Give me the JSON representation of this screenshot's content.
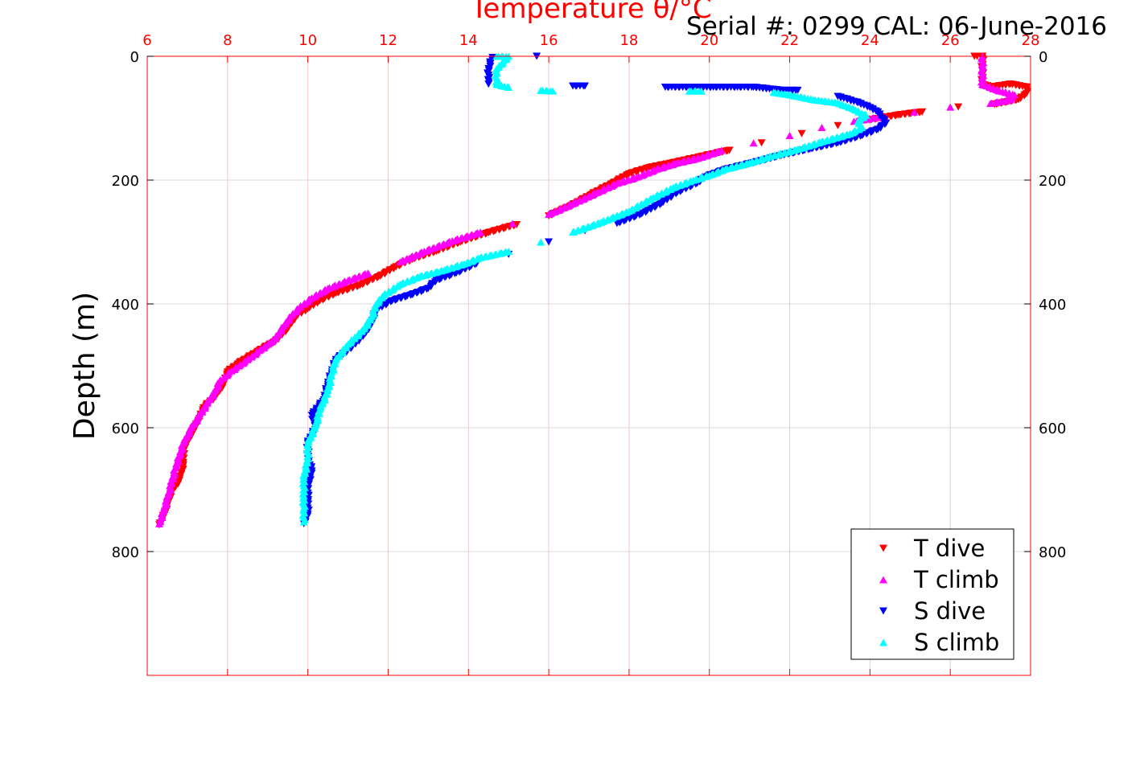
{
  "chart_data": {
    "type": "scatter",
    "title": "Temperature θ/°C",
    "subtitle": "Serial #: 0299 CAL: 06-June-2016",
    "xlabel": "Temperature θ/°C",
    "ylabel": "Depth (m)",
    "xlim": [
      6,
      28
    ],
    "ylim": [
      1000,
      0
    ],
    "y_reversed": true,
    "x_axis_position": "top",
    "x_ticks": [
      "6",
      "8",
      "10",
      "12",
      "14",
      "16",
      "18",
      "20",
      "22",
      "24",
      "26",
      "28"
    ],
    "y_ticks": [
      "0",
      "200",
      "400",
      "600",
      "800"
    ],
    "grid": true,
    "legend_position": "bottom-right",
    "axis_color": "#ff0000",
    "series": [
      {
        "name": "T dive",
        "marker": "triangle-down",
        "color": "#ff0000",
        "points": [
          [
            26.6,
            0
          ],
          [
            26.8,
            0
          ],
          [
            26.8,
            20
          ],
          [
            26.8,
            45
          ],
          [
            27.0,
            50
          ],
          [
            27.5,
            45
          ],
          [
            27.9,
            50
          ],
          [
            27.9,
            60
          ],
          [
            27.7,
            70
          ],
          [
            27.1,
            78
          ],
          [
            26.2,
            82
          ],
          [
            25.3,
            90
          ],
          [
            24.7,
            95
          ],
          [
            24.0,
            103
          ],
          [
            23.2,
            112
          ],
          [
            22.3,
            125
          ],
          [
            21.3,
            140
          ],
          [
            20.5,
            152
          ],
          [
            19.8,
            162
          ],
          [
            19.1,
            172
          ],
          [
            18.5,
            180
          ],
          [
            18.0,
            190
          ],
          [
            17.6,
            205
          ],
          [
            17.1,
            222
          ],
          [
            16.6,
            240
          ],
          [
            16.0,
            258
          ],
          [
            15.2,
            272
          ],
          [
            14.5,
            285
          ],
          [
            13.8,
            300
          ],
          [
            13.2,
            315
          ],
          [
            12.6,
            328
          ],
          [
            12.2,
            340
          ],
          [
            11.8,
            355
          ],
          [
            11.3,
            370
          ],
          [
            10.7,
            383
          ],
          [
            10.3,
            395
          ],
          [
            10.0,
            408
          ],
          [
            9.7,
            420
          ],
          [
            9.5,
            440
          ],
          [
            9.2,
            460
          ],
          [
            8.8,
            475
          ],
          [
            8.3,
            495
          ],
          [
            8.0,
            510
          ],
          [
            7.9,
            530
          ],
          [
            7.7,
            550
          ],
          [
            7.4,
            568
          ],
          [
            7.3,
            585
          ],
          [
            7.1,
            610
          ],
          [
            6.9,
            635
          ],
          [
            6.9,
            660
          ],
          [
            6.8,
            685
          ],
          [
            6.6,
            705
          ],
          [
            6.5,
            725
          ],
          [
            6.4,
            745
          ],
          [
            6.3,
            757
          ]
        ]
      },
      {
        "name": "T climb",
        "marker": "triangle-up",
        "color": "#ff00ff",
        "points": [
          [
            26.8,
            0
          ],
          [
            26.8,
            20
          ],
          [
            26.8,
            45
          ],
          [
            27.2,
            55
          ],
          [
            27.6,
            62
          ],
          [
            27.5,
            70
          ],
          [
            27.0,
            76
          ],
          [
            26.0,
            82
          ],
          [
            25.1,
            90
          ],
          [
            24.3,
            97
          ],
          [
            23.6,
            105
          ],
          [
            22.8,
            115
          ],
          [
            22.0,
            128
          ],
          [
            21.1,
            140
          ],
          [
            20.3,
            152
          ],
          [
            19.7,
            165
          ],
          [
            19.2,
            172
          ],
          [
            18.7,
            182
          ],
          [
            18.2,
            195
          ],
          [
            17.7,
            205
          ],
          [
            17.2,
            220
          ],
          [
            16.6,
            238
          ],
          [
            16.0,
            255
          ],
          [
            15.1,
            270
          ],
          [
            14.3,
            284
          ],
          [
            13.6,
            298
          ],
          [
            12.9,
            315
          ],
          [
            12.3,
            332
          ],
          [
            11.5,
            350
          ],
          [
            11.0,
            362
          ],
          [
            10.5,
            375
          ],
          [
            10.1,
            390
          ],
          [
            9.8,
            405
          ],
          [
            9.6,
            418
          ],
          [
            9.4,
            435
          ],
          [
            9.2,
            455
          ],
          [
            8.8,
            475
          ],
          [
            8.5,
            490
          ],
          [
            8.1,
            508
          ],
          [
            7.8,
            525
          ],
          [
            7.7,
            540
          ],
          [
            7.5,
            560
          ],
          [
            7.3,
            580
          ],
          [
            7.1,
            600
          ],
          [
            6.9,
            625
          ],
          [
            6.8,
            645
          ],
          [
            6.7,
            665
          ],
          [
            6.6,
            690
          ],
          [
            6.5,
            715
          ],
          [
            6.4,
            735
          ],
          [
            6.3,
            755
          ]
        ]
      },
      {
        "name": "S dive",
        "marker": "triangle-down",
        "color": "#0000ff",
        "points": [
          [
            15.7,
            0
          ],
          [
            14.6,
            2
          ],
          [
            14.5,
            20
          ],
          [
            14.5,
            45
          ],
          [
            16.6,
            48
          ],
          [
            16.9,
            48
          ],
          [
            18.9,
            50
          ],
          [
            19.5,
            50
          ],
          [
            20.1,
            50
          ],
          [
            20.7,
            50
          ],
          [
            21.1,
            50
          ],
          [
            21.8,
            55
          ],
          [
            22.2,
            55
          ],
          [
            23.2,
            65
          ],
          [
            23.7,
            75
          ],
          [
            24.0,
            83
          ],
          [
            24.2,
            90
          ],
          [
            24.3,
            100
          ],
          [
            24.4,
            108
          ],
          [
            24.2,
            118
          ],
          [
            23.8,
            128
          ],
          [
            23.2,
            140
          ],
          [
            22.5,
            150
          ],
          [
            21.8,
            160
          ],
          [
            21.1,
            172
          ],
          [
            20.4,
            183
          ],
          [
            19.9,
            195
          ],
          [
            19.7,
            205
          ],
          [
            19.2,
            220
          ],
          [
            18.8,
            238
          ],
          [
            18.3,
            255
          ],
          [
            17.7,
            270
          ],
          [
            16.9,
            282
          ],
          [
            16.0,
            300
          ],
          [
            15.0,
            320
          ],
          [
            14.2,
            335
          ],
          [
            13.7,
            350
          ],
          [
            13.2,
            362
          ],
          [
            13.0,
            375
          ],
          [
            12.6,
            385
          ],
          [
            12.1,
            395
          ],
          [
            11.7,
            410
          ],
          [
            11.6,
            430
          ],
          [
            11.4,
            450
          ],
          [
            11.1,
            470
          ],
          [
            10.7,
            490
          ],
          [
            10.6,
            510
          ],
          [
            10.5,
            530
          ],
          [
            10.4,
            555
          ],
          [
            10.1,
            580
          ],
          [
            10.2,
            600
          ],
          [
            10.0,
            625
          ],
          [
            10.0,
            650
          ],
          [
            10.1,
            670
          ],
          [
            10.0,
            695
          ],
          [
            10.0,
            720
          ],
          [
            10.0,
            740
          ],
          [
            9.9,
            755
          ]
        ]
      },
      {
        "name": "S climb",
        "marker": "triangle-up",
        "color": "#00ffff",
        "points": [
          [
            14.7,
            0
          ],
          [
            15.0,
            0
          ],
          [
            14.7,
            20
          ],
          [
            14.7,
            45
          ],
          [
            15.0,
            50
          ],
          [
            15.8,
            55
          ],
          [
            16.1,
            56
          ],
          [
            19.5,
            56
          ],
          [
            19.8,
            56
          ],
          [
            21.6,
            58
          ],
          [
            22.0,
            62
          ],
          [
            22.6,
            70
          ],
          [
            23.2,
            75
          ],
          [
            23.6,
            85
          ],
          [
            23.9,
            95
          ],
          [
            23.7,
            105
          ],
          [
            23.8,
            115
          ],
          [
            23.5,
            125
          ],
          [
            22.8,
            138
          ],
          [
            22.2,
            150
          ],
          [
            21.5,
            162
          ],
          [
            21.0,
            172
          ],
          [
            20.4,
            182
          ],
          [
            20.0,
            192
          ],
          [
            19.6,
            200
          ],
          [
            19.1,
            212
          ],
          [
            18.6,
            228
          ],
          [
            18.0,
            250
          ],
          [
            17.3,
            268
          ],
          [
            16.6,
            284
          ],
          [
            15.8,
            300
          ],
          [
            15.0,
            315
          ],
          [
            14.3,
            325
          ],
          [
            13.9,
            335
          ],
          [
            13.4,
            345
          ],
          [
            12.8,
            355
          ],
          [
            12.3,
            368
          ],
          [
            11.9,
            385
          ],
          [
            11.7,
            400
          ],
          [
            11.6,
            420
          ],
          [
            11.4,
            440
          ],
          [
            11.0,
            465
          ],
          [
            10.7,
            490
          ],
          [
            10.6,
            510
          ],
          [
            10.5,
            540
          ],
          [
            10.3,
            570
          ],
          [
            10.2,
            595
          ],
          [
            10.0,
            625
          ],
          [
            10.0,
            650
          ],
          [
            9.9,
            680
          ],
          [
            9.9,
            710
          ],
          [
            9.9,
            730
          ],
          [
            9.9,
            752
          ]
        ]
      }
    ]
  }
}
